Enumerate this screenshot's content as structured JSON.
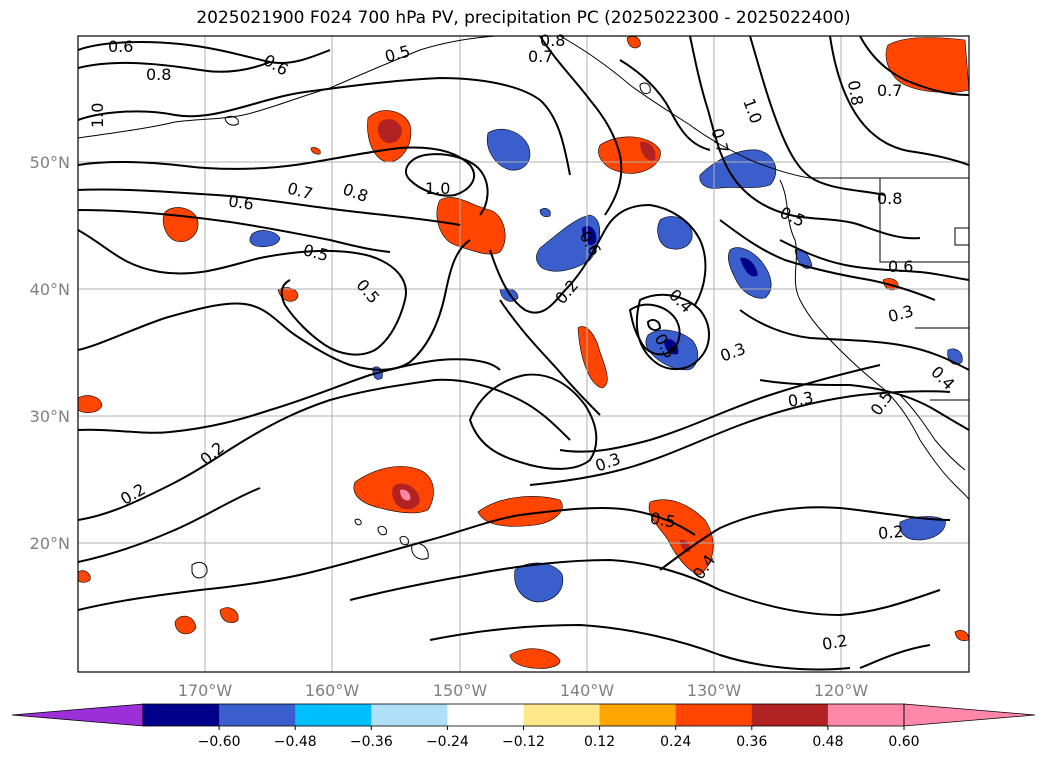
{
  "title": "2025021900 F024 700 hPa PV, precipitation PC (2025022300 - 2025022400)",
  "map": {
    "lat_labels": [
      "50°N",
      "40°N",
      "30°N",
      "20°N"
    ],
    "lon_labels": [
      "170°W",
      "160°W",
      "150°W",
      "140°W",
      "130°W",
      "120°W"
    ],
    "contour_labels": [
      "0.6",
      "0.8",
      "1.0",
      "0.5",
      "0.7",
      "0.6",
      "0.8",
      "0.6",
      "0.7",
      "0.8",
      "1.0",
      "0.6",
      "0.5",
      "0.5",
      "0.2",
      "0.4",
      "0.3",
      "0.3",
      "0.2",
      "0.2",
      "0.3",
      "0.5",
      "0.4",
      "0.2",
      "0.2",
      "0.7",
      "0.8",
      "0.8",
      "0.7",
      "1.0",
      "0.5",
      "0.6",
      "0.3",
      "0.4",
      "0.5",
      "0.5"
    ]
  },
  "colorbar": {
    "ticks": [
      "−0.60",
      "−0.48",
      "−0.36",
      "−0.24",
      "−0.12",
      "0.12",
      "0.24",
      "0.36",
      "0.48",
      "0.60"
    ],
    "colors": [
      "#9b30d9",
      "#00008b",
      "#3a5fcd",
      "#00bfff",
      "#b0e0f8",
      "#ffffff",
      "#ffe88a",
      "#ffa500",
      "#ff4500",
      "#b22222",
      "#ff88aa",
      "#ff88aa"
    ]
  }
}
